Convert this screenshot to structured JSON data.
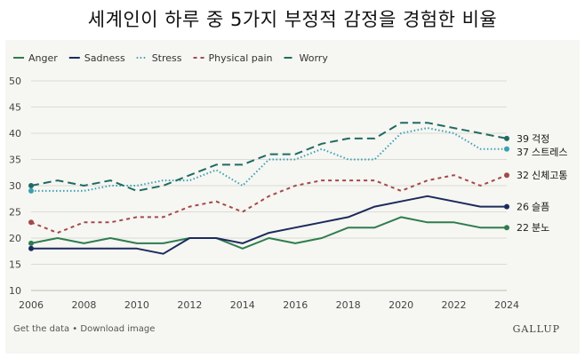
{
  "title": "세계인이 하루 중 5가지 부정적 감정을 경험한 비율",
  "footer": {
    "get_data": "Get the data",
    "separator": " • ",
    "download": "Download image",
    "brand": "GALLUP"
  },
  "chart_data": {
    "type": "line",
    "x": [
      2006,
      2007,
      2008,
      2009,
      2010,
      2011,
      2012,
      2013,
      2014,
      2015,
      2016,
      2017,
      2018,
      2019,
      2020,
      2021,
      2022,
      2023,
      2024
    ],
    "xticks": [
      2006,
      2008,
      2010,
      2012,
      2014,
      2016,
      2018,
      2020,
      2022,
      2024
    ],
    "yticks": [
      10,
      15,
      20,
      25,
      30,
      35,
      40,
      45,
      50
    ],
    "ylim": [
      10,
      50
    ],
    "grid": true,
    "legend_position": "top-left",
    "series": [
      {
        "name": "Anger",
        "color": "#2e7d4f",
        "dash": "solid",
        "values": [
          19,
          20,
          19,
          20,
          19,
          19,
          20,
          20,
          18,
          20,
          19,
          20,
          22,
          22,
          24,
          23,
          23,
          22,
          22
        ],
        "end_value": "22",
        "end_label": "분노"
      },
      {
        "name": "Sadness",
        "color": "#1c2a5c",
        "dash": "solid",
        "values": [
          18,
          18,
          18,
          18,
          18,
          17,
          20,
          20,
          19,
          21,
          22,
          23,
          24,
          26,
          27,
          28,
          27,
          26,
          26
        ],
        "end_value": "26",
        "end_label": "슬픔"
      },
      {
        "name": "Stress",
        "color": "#3a9fb5",
        "dash": "dot",
        "values": [
          29,
          29,
          29,
          30,
          30,
          31,
          31,
          33,
          30,
          35,
          35,
          37,
          35,
          35,
          40,
          41,
          40,
          37,
          37
        ],
        "end_value": "37",
        "end_label": "스트레스"
      },
      {
        "name": "Physical pain",
        "color": "#a24a4a",
        "dash": "dash-short",
        "values": [
          23,
          21,
          23,
          23,
          24,
          24,
          26,
          27,
          25,
          28,
          30,
          31,
          31,
          31,
          29,
          31,
          32,
          30,
          32
        ],
        "end_value": "32",
        "end_label": "신체고통"
      },
      {
        "name": "Worry",
        "color": "#1f6b63",
        "dash": "dash-long",
        "values": [
          30,
          31,
          30,
          31,
          29,
          30,
          32,
          34,
          34,
          36,
          36,
          38,
          39,
          39,
          42,
          42,
          41,
          40,
          39
        ],
        "end_value": "39",
        "end_label": "걱정"
      }
    ]
  }
}
